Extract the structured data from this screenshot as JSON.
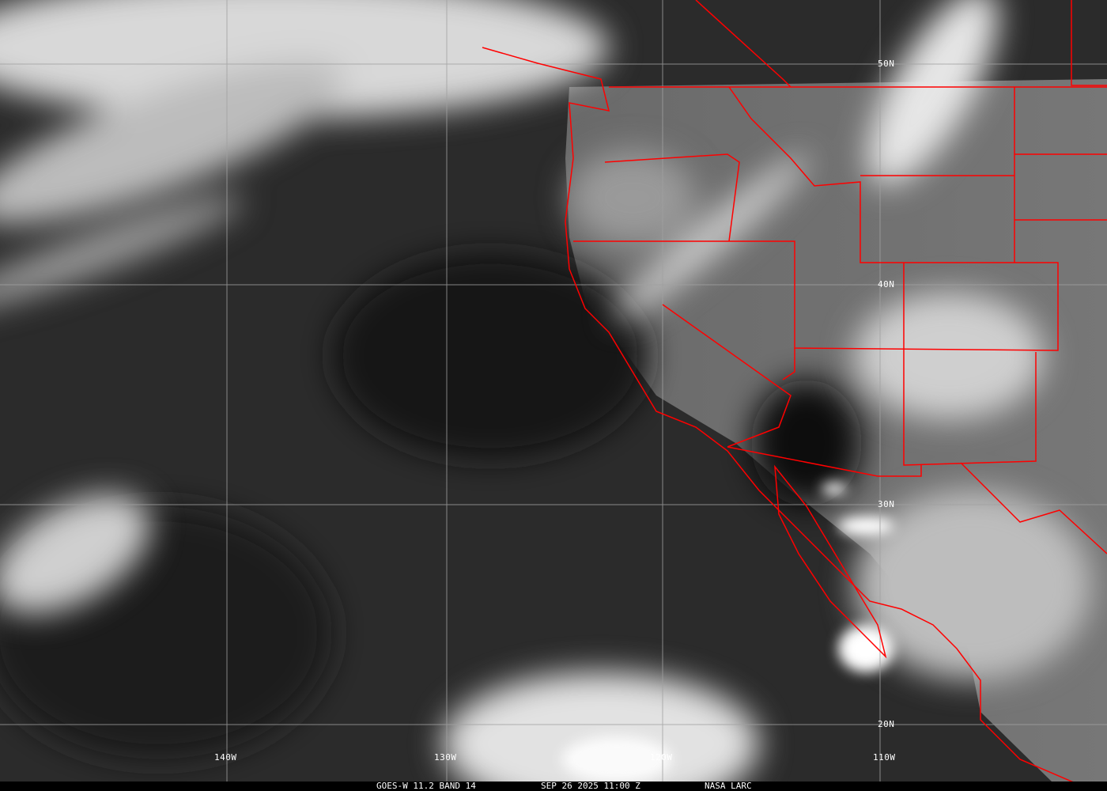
{
  "image": {
    "type": "satellite infrared image",
    "colors": {
      "borders": "#ff0000",
      "grid": "#a0a0a0",
      "caption_bg": "#000000",
      "text": "#ffffff"
    }
  },
  "grid_labels": {
    "longitudes": [
      "140W",
      "130W",
      "120W",
      "110W"
    ],
    "latitudes": [
      "50N",
      "40N",
      "30N",
      "20N"
    ]
  },
  "caption": {
    "satellite": "GOES-W 11.2 BAND 14",
    "datetime": "SEP 26 2025 11:00 Z",
    "source": "NASA LARC"
  }
}
